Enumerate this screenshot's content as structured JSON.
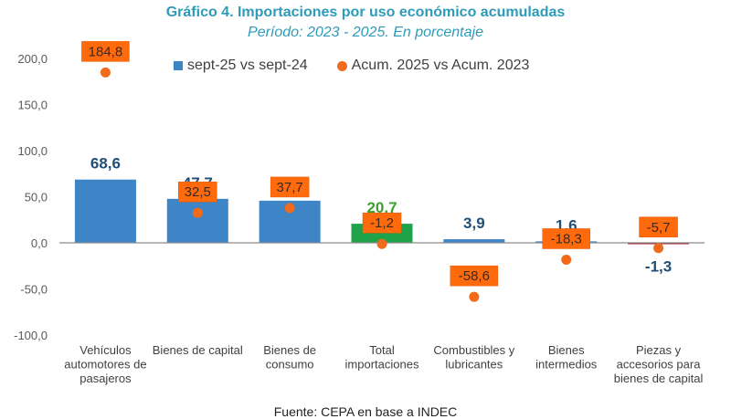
{
  "chart_data": {
    "type": "bar",
    "title": "Gráfico 4. Importaciones por uso económico acumuladas",
    "subtitle": "Período: 2023 - 2025. En porcentaje",
    "xlabel": "",
    "ylabel": "",
    "ylim": [
      -100,
      200
    ],
    "yticks": [
      "-100,0",
      "-50,0",
      "0,0",
      "50,0",
      "100,0",
      "150,0",
      "200,0"
    ],
    "ytick_values": [
      -100,
      -50,
      0,
      50,
      100,
      150,
      200
    ],
    "grid": false,
    "legend_position": "top",
    "categories": [
      [
        "Vehículos",
        "automotores de",
        "pasajeros"
      ],
      [
        "Bienes de capital"
      ],
      [
        "Bienes de",
        "consumo"
      ],
      [
        "Total",
        "importaciones"
      ],
      [
        "Combustibles y",
        "lubricantes"
      ],
      [
        "Bienes",
        "intermedios"
      ],
      [
        "Piezas y",
        "accesorios para",
        "bienes de capital"
      ]
    ],
    "series": [
      {
        "name": "sept-25 vs sept-24",
        "kind": "bar",
        "color": "#3d85c6",
        "values": [
          68.6,
          47.7,
          45.7,
          20.7,
          3.9,
          1.6,
          -1.3
        ],
        "labels": [
          "68,6",
          "47,7",
          "45,7",
          "20,7",
          "3,9",
          "1,6",
          "-1,3"
        ],
        "bar_colors": [
          "#3d85c6",
          "#3d85c6",
          "#3d85c6",
          "#1fa34a",
          "#3d85c6",
          "#3d85c6",
          "#a3141e"
        ],
        "label_colors": [
          "#1f4e79",
          "#1f4e79",
          "#1f4e79",
          "#3aa02e",
          "#1f4e79",
          "#1f4e79",
          "#1f4e79"
        ]
      },
      {
        "name": "Acum. 2025 vs Acum. 2023",
        "kind": "dot",
        "color": "#f26a1b",
        "values": [
          184.8,
          32.5,
          37.7,
          -1.2,
          -58.6,
          -18.3,
          -5.7
        ],
        "labels": [
          "184,8",
          "32,5",
          "37,7",
          "-1,2",
          "-58,6",
          "-18,3",
          "-5,7"
        ]
      }
    ]
  },
  "footer": "Fuente: CEPA en base a INDEC"
}
